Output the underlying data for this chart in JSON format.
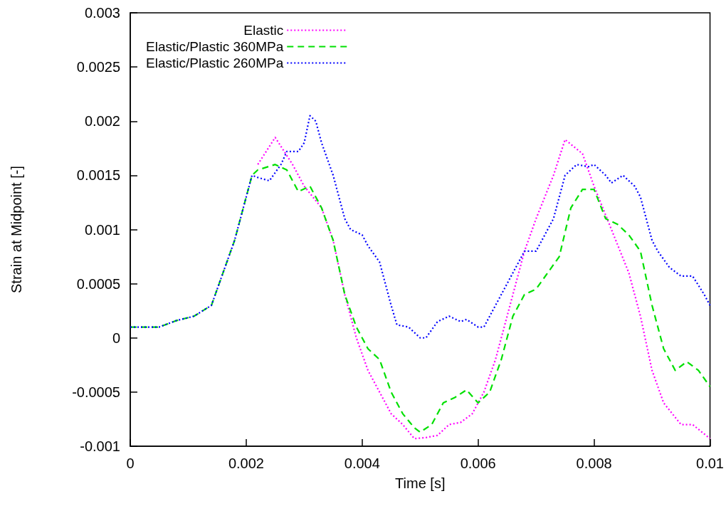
{
  "chart_data": {
    "type": "line",
    "xlabel": "Time [s]",
    "ylabel": "Strain at Midpoint [-]",
    "xlim": [
      0,
      0.01
    ],
    "ylim": [
      -0.001,
      0.003
    ],
    "xticks": [
      0,
      0.002,
      0.004,
      0.006,
      0.008,
      0.01
    ],
    "yticks": [
      -0.001,
      -0.0005,
      0,
      0.0005,
      0.001,
      0.0015,
      0.002,
      0.0025,
      0.003
    ],
    "grid": false,
    "legend": "top left",
    "marker": "none",
    "series": [
      {
        "name": "Elastic",
        "color": "#ff00ff",
        "line_style": "dotted",
        "x": [
          0.0022,
          0.0025,
          0.0028,
          0.003,
          0.0033,
          0.0035,
          0.0037,
          0.0039,
          0.0041,
          0.0043,
          0.0045,
          0.0047,
          0.0049,
          0.0051,
          0.0053,
          0.0055,
          0.0057,
          0.0059,
          0.0061,
          0.0063,
          0.0065,
          0.0068,
          0.007,
          0.0073,
          0.0075,
          0.0078,
          0.008,
          0.0083,
          0.0086,
          0.0088,
          0.009,
          0.0092,
          0.0095,
          0.0097,
          0.01
        ],
        "values": [
          0.0016,
          0.00185,
          0.0016,
          0.0014,
          0.0012,
          0.0009,
          0.0004,
          0,
          -0.0003,
          -0.0005,
          -0.0007,
          -0.0008,
          -0.00093,
          -0.00092,
          -0.0009,
          -0.0008,
          -0.00078,
          -0.0007,
          -0.0005,
          -0.0002,
          0.0002,
          0.0008,
          0.0011,
          0.0015,
          0.00183,
          0.0017,
          0.0014,
          0.001,
          0.0006,
          0.0002,
          -0.0003,
          -0.0006,
          -0.0008,
          -0.0008,
          -0.00093
        ]
      },
      {
        "name": "Elastic/Plastic 360MPa",
        "color": "#00e000",
        "line_style": "dashed",
        "x": [
          0,
          0.0005,
          0.0008,
          0.0011,
          0.0014,
          0.0016,
          0.0018,
          0.002,
          0.0021,
          0.0022,
          0.0025,
          0.0027,
          0.0029,
          0.0031,
          0.0033,
          0.0035,
          0.0037,
          0.0039,
          0.0041,
          0.0043,
          0.0045,
          0.0047,
          0.0049,
          0.005,
          0.0052,
          0.0054,
          0.0056,
          0.0058,
          0.006,
          0.0062,
          0.0064,
          0.0066,
          0.0068,
          0.007,
          0.0072,
          0.0074,
          0.0076,
          0.0078,
          0.008,
          0.0082,
          0.0084,
          0.0086,
          0.0088,
          0.009,
          0.0092,
          0.0094,
          0.0096,
          0.0098,
          0.01
        ],
        "values": [
          0.0001,
          0.0001,
          0.00016,
          0.0002,
          0.0003,
          0.0006,
          0.0009,
          0.0013,
          0.0015,
          0.00155,
          0.0016,
          0.00155,
          0.00135,
          0.0014,
          0.0012,
          0.0009,
          0.0004,
          0.0001,
          -0.0001,
          -0.0002,
          -0.0005,
          -0.0007,
          -0.00083,
          -0.00087,
          -0.0008,
          -0.0006,
          -0.00055,
          -0.00048,
          -0.0006,
          -0.0005,
          -0.0002,
          0.0002,
          0.0004,
          0.00045,
          0.0006,
          0.00075,
          0.0012,
          0.00137,
          0.00137,
          0.0011,
          0.00105,
          0.00095,
          0.0008,
          0.0003,
          -0.0001,
          -0.0003,
          -0.00022,
          -0.0003,
          -0.00045
        ]
      },
      {
        "name": "Elastic/Plastic 260MPa",
        "color": "#0000ff",
        "line_style": "dotted",
        "x": [
          0,
          0.0005,
          0.0008,
          0.0011,
          0.0014,
          0.0016,
          0.0018,
          0.002,
          0.0021,
          0.0022,
          0.0024,
          0.0026,
          0.0027,
          0.0029,
          0.003,
          0.0031,
          0.0032,
          0.0033,
          0.0035,
          0.0036,
          0.0037,
          0.0038,
          0.004,
          0.0041,
          0.0043,
          0.0044,
          0.0045,
          0.0046,
          0.0048,
          0.005,
          0.0051,
          0.0053,
          0.0055,
          0.0057,
          0.0058,
          0.006,
          0.0061,
          0.0063,
          0.0065,
          0.0067,
          0.0068,
          0.007,
          0.0071,
          0.0073,
          0.0075,
          0.0077,
          0.0079,
          0.008,
          0.0082,
          0.0083,
          0.0085,
          0.0087,
          0.0088,
          0.009,
          0.0091,
          0.0093,
          0.0095,
          0.0097,
          0.0099,
          0.01
        ],
        "values": [
          0.0001,
          0.0001,
          0.00016,
          0.0002,
          0.0003,
          0.0006,
          0.0009,
          0.0013,
          0.0015,
          0.00148,
          0.00145,
          0.0016,
          0.00172,
          0.00172,
          0.0018,
          0.00205,
          0.002,
          0.0018,
          0.0015,
          0.0013,
          0.0011,
          0.001,
          0.00095,
          0.00085,
          0.0007,
          0.0005,
          0.0003,
          0.00012,
          0.0001,
          0,
          0,
          0.00015,
          0.0002,
          0.00015,
          0.00017,
          0.0001,
          0.0001,
          0.0003,
          0.0005,
          0.0007,
          0.0008,
          0.0008,
          0.0009,
          0.0011,
          0.0015,
          0.0016,
          0.00158,
          0.0016,
          0.0015,
          0.00143,
          0.0015,
          0.0014,
          0.0013,
          0.0009,
          0.0008,
          0.00065,
          0.00057,
          0.00057,
          0.0004,
          0.0003
        ]
      }
    ]
  }
}
